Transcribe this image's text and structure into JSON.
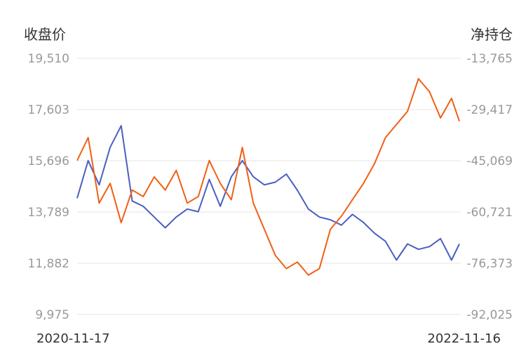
{
  "chart_data": {
    "type": "line",
    "ylabel_left": "收盘价",
    "ylabel_right": "净持仓",
    "x_start_label": "2020-11-17",
    "x_end_label": "2022-11-16",
    "grid": true,
    "left_ticks": [
      "19,510",
      "17,603",
      "15,696",
      "13,789",
      "11,882",
      "9,975"
    ],
    "right_ticks": [
      "-13,765",
      "-29,417",
      "-45,069",
      "-60,721",
      "-76,373",
      "-92,025"
    ],
    "ylim_left": [
      9975,
      19510
    ],
    "ylim_right": [
      -92025,
      -13765
    ],
    "series": [
      {
        "axis": "left",
        "color": "#4a5fc1",
        "x": [
          "2020-11-17",
          "2020-12-08",
          "2020-12-29",
          "2021-01-19",
          "2021-02-09",
          "2021-03-02",
          "2021-03-23",
          "2021-04-13",
          "2021-05-04",
          "2021-05-25",
          "2021-06-15",
          "2021-07-06",
          "2021-07-27",
          "2021-08-17",
          "2021-09-07",
          "2021-09-28",
          "2021-10-19",
          "2021-11-09",
          "2021-11-30",
          "2021-12-21",
          "2022-01-11",
          "2022-02-01",
          "2022-02-22",
          "2022-03-15",
          "2022-04-05",
          "2022-04-26",
          "2022-05-17",
          "2022-06-07",
          "2022-06-28",
          "2022-07-19",
          "2022-08-09",
          "2022-08-30",
          "2022-09-20",
          "2022-10-11",
          "2022-11-01",
          "2022-11-16"
        ],
        "values": [
          14300,
          15700,
          14800,
          16200,
          17000,
          14200,
          14000,
          13600,
          13200,
          13600,
          13900,
          13800,
          15000,
          14000,
          15100,
          15700,
          15100,
          14800,
          14900,
          15200,
          14600,
          13900,
          13600,
          13500,
          13300,
          13700,
          13400,
          13000,
          12700,
          12000,
          12600,
          12400,
          12500,
          12800,
          12000,
          12600
        ]
      },
      {
        "axis": "right",
        "color": "#f06014",
        "x": [
          "2020-11-17",
          "2020-12-08",
          "2020-12-29",
          "2021-01-19",
          "2021-02-09",
          "2021-03-02",
          "2021-03-23",
          "2021-04-13",
          "2021-05-04",
          "2021-05-25",
          "2021-06-15",
          "2021-07-06",
          "2021-07-27",
          "2021-08-17",
          "2021-09-07",
          "2021-09-28",
          "2021-10-19",
          "2021-11-09",
          "2021-11-30",
          "2021-12-21",
          "2022-01-11",
          "2022-02-01",
          "2022-02-22",
          "2022-03-15",
          "2022-04-05",
          "2022-04-26",
          "2022-05-17",
          "2022-06-07",
          "2022-06-28",
          "2022-07-19",
          "2022-08-09",
          "2022-08-30",
          "2022-09-20",
          "2022-10-11",
          "2022-11-01",
          "2022-11-16"
        ],
        "values": [
          -45000,
          -38000,
          -58000,
          -52000,
          -64000,
          -54000,
          -56000,
          -50000,
          -54000,
          -48000,
          -58000,
          -56000,
          -45000,
          -52000,
          -57000,
          -41000,
          -58000,
          -66000,
          -74000,
          -78000,
          -76000,
          -80000,
          -78000,
          -66000,
          -62000,
          -57000,
          -52000,
          -46000,
          -38000,
          -34000,
          -30000,
          -20000,
          -24000,
          -32000,
          -26000,
          -33000
        ]
      }
    ]
  }
}
